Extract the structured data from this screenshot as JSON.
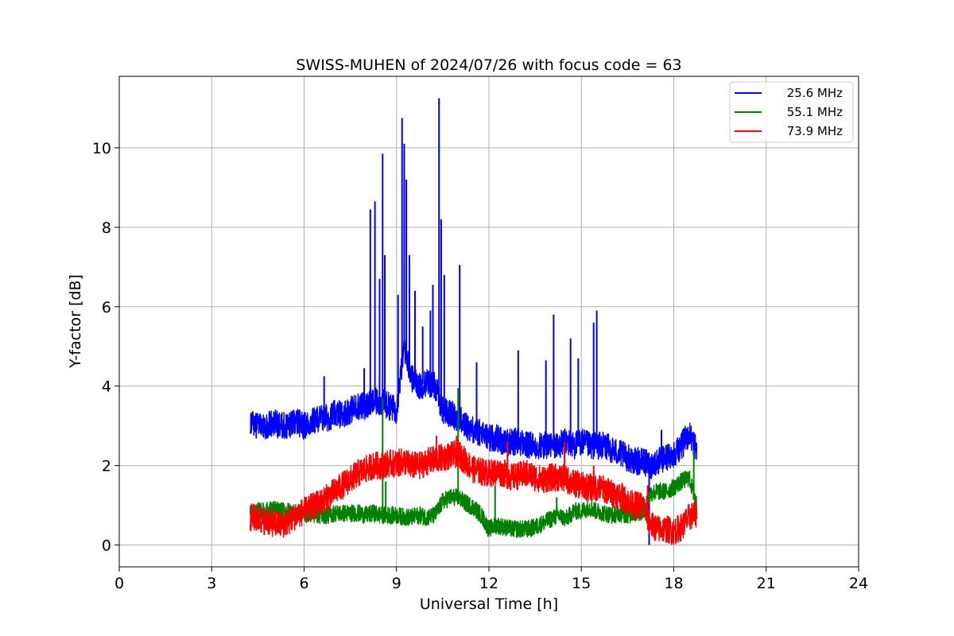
{
  "chart_data": {
    "type": "line",
    "title": "SWISS-MUHEN of 2024/07/26 with focus code = 63",
    "xlabel": "Universal Time [h]",
    "ylabel": "Y-factor [dB]",
    "xlim": [
      0,
      24
    ],
    "ylim": [
      -0.55,
      11.8
    ],
    "xticks": [
      0,
      3,
      6,
      9,
      12,
      15,
      18,
      21,
      24
    ],
    "yticks": [
      0,
      2,
      4,
      6,
      8,
      10
    ],
    "xtick_labels": [
      "0",
      "3",
      "6",
      "9",
      "12",
      "15",
      "18",
      "21",
      "24"
    ],
    "ytick_labels": [
      "0",
      "2",
      "4",
      "6",
      "8",
      "10"
    ],
    "grid": true,
    "legend_position": "top-right",
    "series": [
      {
        "name": "25.6 MHz",
        "color": "#0000ff",
        "x": [
          4.25,
          4.5,
          4.75,
          5.0,
          5.25,
          5.5,
          5.75,
          6.0,
          6.25,
          6.5,
          6.75,
          7.0,
          7.25,
          7.5,
          7.75,
          8.0,
          8.25,
          8.5,
          8.75,
          9.0,
          9.25,
          9.5,
          9.75,
          10.0,
          10.25,
          10.5,
          10.75,
          11.0,
          11.25,
          11.5,
          11.75,
          12.0,
          12.25,
          12.5,
          12.75,
          13.0,
          13.25,
          13.5,
          13.75,
          14.0,
          14.25,
          14.5,
          14.75,
          15.0,
          15.25,
          15.5,
          15.75,
          16.0,
          16.25,
          16.5,
          16.75,
          17.0,
          17.25,
          17.5,
          17.75,
          18.0,
          18.25,
          18.5,
          18.75
        ],
        "y": [
          3.1,
          3.0,
          3.0,
          3.1,
          3.0,
          3.0,
          3.1,
          3.0,
          3.1,
          3.2,
          3.2,
          3.3,
          3.3,
          3.4,
          3.5,
          3.5,
          3.6,
          3.6,
          3.5,
          3.4,
          5.0,
          4.2,
          4.0,
          4.1,
          4.0,
          3.4,
          3.3,
          3.2,
          3.0,
          2.9,
          2.8,
          2.7,
          2.7,
          2.6,
          2.6,
          2.6,
          2.5,
          2.5,
          2.5,
          2.5,
          2.5,
          2.6,
          2.5,
          2.6,
          2.5,
          2.5,
          2.5,
          2.4,
          2.3,
          2.2,
          2.1,
          2.1,
          2.0,
          2.1,
          2.2,
          2.3,
          2.5,
          2.8,
          2.4
        ],
        "noise": 0.35,
        "spikes": [
          {
            "x": 8.15,
            "y": 8.45
          },
          {
            "x": 8.3,
            "y": 8.65
          },
          {
            "x": 8.45,
            "y": 6.7
          },
          {
            "x": 8.55,
            "y": 9.85
          },
          {
            "x": 8.62,
            "y": 7.3
          },
          {
            "x": 9.05,
            "y": 6.3
          },
          {
            "x": 9.18,
            "y": 10.75
          },
          {
            "x": 9.25,
            "y": 10.1
          },
          {
            "x": 9.32,
            "y": 9.2
          },
          {
            "x": 9.42,
            "y": 7.3
          },
          {
            "x": 9.6,
            "y": 6.4
          },
          {
            "x": 9.85,
            "y": 5.5
          },
          {
            "x": 10.1,
            "y": 5.9
          },
          {
            "x": 10.18,
            "y": 6.55
          },
          {
            "x": 10.38,
            "y": 11.25
          },
          {
            "x": 10.45,
            "y": 8.2
          },
          {
            "x": 10.55,
            "y": 6.8
          },
          {
            "x": 11.05,
            "y": 7.05
          },
          {
            "x": 11.6,
            "y": 4.6
          },
          {
            "x": 12.95,
            "y": 4.9
          },
          {
            "x": 13.85,
            "y": 4.65
          },
          {
            "x": 14.1,
            "y": 5.8
          },
          {
            "x": 14.65,
            "y": 5.2
          },
          {
            "x": 14.9,
            "y": 4.7
          },
          {
            "x": 15.4,
            "y": 5.6
          },
          {
            "x": 15.5,
            "y": 5.9
          },
          {
            "x": 6.65,
            "y": 4.25
          },
          {
            "x": 7.95,
            "y": 4.45
          },
          {
            "x": 17.2,
            "y": 0.0
          },
          {
            "x": 17.6,
            "y": 2.9
          }
        ]
      },
      {
        "name": "55.1 MHz",
        "color": "#008000",
        "x": [
          4.25,
          4.5,
          4.75,
          5.0,
          5.25,
          5.5,
          5.75,
          6.0,
          6.25,
          6.5,
          6.75,
          7.0,
          7.25,
          7.5,
          7.75,
          8.0,
          8.25,
          8.5,
          8.75,
          9.0,
          9.25,
          9.5,
          9.75,
          10.0,
          10.25,
          10.5,
          10.75,
          11.0,
          11.25,
          11.5,
          11.75,
          12.0,
          12.25,
          12.5,
          12.75,
          13.0,
          13.25,
          13.5,
          13.75,
          14.0,
          14.25,
          14.5,
          14.75,
          15.0,
          15.25,
          15.5,
          15.75,
          16.0,
          16.25,
          16.5,
          16.75,
          17.0,
          17.25,
          17.5,
          17.75,
          18.0,
          18.25,
          18.5,
          18.75
        ],
        "y": [
          0.8,
          0.85,
          0.85,
          0.9,
          0.85,
          0.85,
          0.8,
          0.8,
          0.8,
          0.75,
          0.75,
          0.8,
          0.8,
          0.8,
          0.8,
          0.75,
          0.8,
          0.75,
          0.75,
          0.75,
          0.7,
          0.7,
          0.75,
          0.7,
          0.75,
          1.1,
          1.2,
          1.2,
          1.05,
          0.95,
          0.75,
          0.4,
          0.5,
          0.45,
          0.4,
          0.4,
          0.4,
          0.45,
          0.55,
          0.65,
          0.75,
          0.65,
          0.85,
          0.85,
          0.95,
          0.85,
          0.8,
          0.75,
          0.8,
          0.75,
          0.8,
          0.85,
          1.3,
          1.35,
          1.35,
          1.45,
          1.6,
          1.7,
          1.0
        ],
        "noise": 0.22,
        "spikes": [
          {
            "x": 8.55,
            "y": 3.7
          },
          {
            "x": 8.65,
            "y": 1.6
          },
          {
            "x": 11.0,
            "y": 3.95
          },
          {
            "x": 12.2,
            "y": 1.5
          },
          {
            "x": 14.2,
            "y": 1.2
          },
          {
            "x": 18.65,
            "y": 2.35
          }
        ]
      },
      {
        "name": "73.9 MHz",
        "color": "#ff0000",
        "x": [
          4.25,
          4.5,
          4.75,
          5.0,
          5.25,
          5.5,
          5.75,
          6.0,
          6.25,
          6.5,
          6.75,
          7.0,
          7.25,
          7.5,
          7.75,
          8.0,
          8.25,
          8.5,
          8.75,
          9.0,
          9.25,
          9.5,
          9.75,
          10.0,
          10.25,
          10.5,
          10.75,
          11.0,
          11.25,
          11.5,
          11.75,
          12.0,
          12.25,
          12.5,
          12.75,
          13.0,
          13.25,
          13.5,
          13.75,
          14.0,
          14.25,
          14.5,
          14.75,
          15.0,
          15.25,
          15.5,
          15.75,
          16.0,
          16.25,
          16.5,
          16.75,
          17.0,
          17.25,
          17.5,
          17.75,
          18.0,
          18.25,
          18.5,
          18.75
        ],
        "y": [
          0.7,
          0.65,
          0.6,
          0.55,
          0.5,
          0.6,
          0.75,
          0.85,
          0.95,
          1.05,
          1.2,
          1.35,
          1.5,
          1.65,
          1.8,
          1.9,
          2.0,
          2.0,
          2.05,
          2.05,
          2.1,
          2.0,
          2.0,
          2.1,
          2.15,
          2.2,
          2.25,
          2.3,
          2.1,
          1.9,
          1.85,
          1.8,
          1.85,
          1.8,
          1.7,
          1.75,
          1.8,
          1.7,
          1.65,
          1.7,
          1.7,
          1.65,
          1.55,
          1.5,
          1.45,
          1.45,
          1.4,
          1.3,
          1.25,
          1.1,
          1.0,
          1.0,
          0.5,
          0.4,
          0.4,
          0.35,
          0.45,
          0.7,
          0.8
        ],
        "noise": 0.35,
        "spikes": [
          {
            "x": 10.3,
            "y": 2.75
          },
          {
            "x": 10.95,
            "y": 2.75
          },
          {
            "x": 12.6,
            "y": 2.6
          },
          {
            "x": 14.45,
            "y": 2.6
          },
          {
            "x": 15.4,
            "y": 2.0
          },
          {
            "x": 17.15,
            "y": 1.5
          },
          {
            "x": 5.35,
            "y": 0.25
          },
          {
            "x": 17.85,
            "y": 0.05
          }
        ]
      }
    ]
  }
}
